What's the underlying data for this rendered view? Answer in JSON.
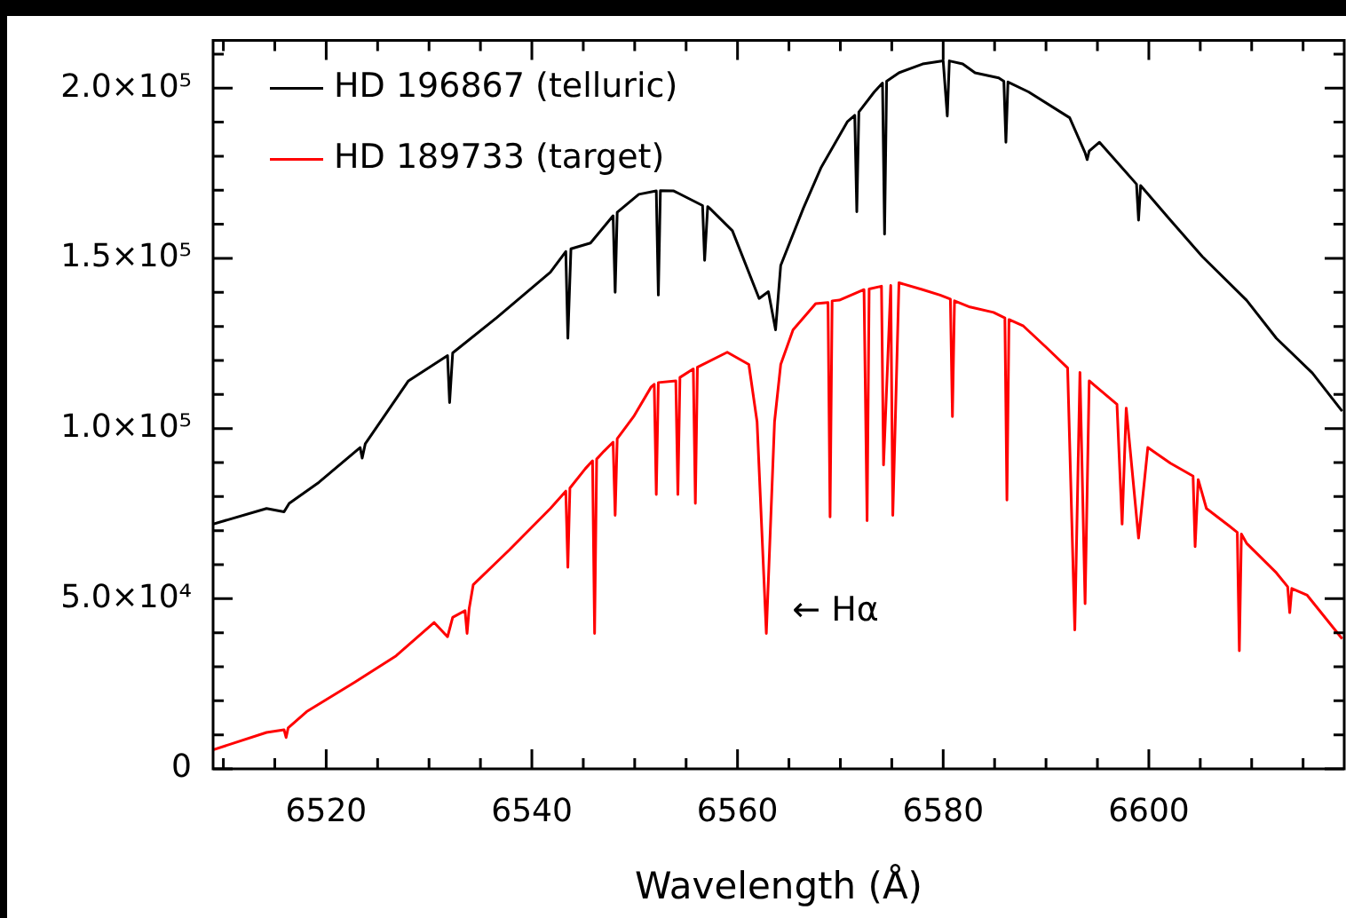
{
  "chart_data": {
    "type": "line",
    "xlabel": "Wavelength (Å)",
    "xlim": [
      6509,
      6619
    ],
    "xticks": [
      {
        "value": 6510,
        "label": null
      },
      {
        "value": 6515,
        "label": null
      },
      6520,
      {
        "value": 6525,
        "label": null
      },
      {
        "value": 6530,
        "label": null
      },
      {
        "value": 6535,
        "label": null
      },
      6540,
      {
        "value": 6545,
        "label": null
      },
      {
        "value": 6550,
        "label": null
      },
      {
        "value": 6555,
        "label": null
      },
      6560,
      {
        "value": 6565,
        "label": null
      },
      {
        "value": 6570,
        "label": null
      },
      {
        "value": 6575,
        "label": null
      },
      6580,
      {
        "value": 6585,
        "label": null
      },
      {
        "value": 6590,
        "label": null
      },
      {
        "value": 6595,
        "label": null
      },
      6600,
      {
        "value": 6605,
        "label": null
      },
      {
        "value": 6610,
        "label": null
      },
      {
        "value": 6615,
        "label": null
      }
    ],
    "ylim": [
      0,
      214000
    ],
    "yticks": [
      {
        "value": 0,
        "label": "0"
      },
      {
        "value": 10000,
        "label": null
      },
      {
        "value": 20000,
        "label": null
      },
      {
        "value": 30000,
        "label": null
      },
      {
        "value": 40000,
        "label": null
      },
      {
        "value": 50000,
        "label": "5.0×10⁴"
      },
      {
        "value": 60000,
        "label": null
      },
      {
        "value": 70000,
        "label": null
      },
      {
        "value": 80000,
        "label": null
      },
      {
        "value": 90000,
        "label": null
      },
      {
        "value": 100000,
        "label": "1.0×10⁵"
      },
      {
        "value": 110000,
        "label": null
      },
      {
        "value": 120000,
        "label": null
      },
      {
        "value": 130000,
        "label": null
      },
      {
        "value": 140000,
        "label": null
      },
      {
        "value": 150000,
        "label": "1.5×10⁵"
      },
      {
        "value": 160000,
        "label": null
      },
      {
        "value": 170000,
        "label": null
      },
      {
        "value": 180000,
        "label": null
      },
      {
        "value": 190000,
        "label": null
      },
      {
        "value": 200000,
        "label": "2.0×10⁵"
      },
      {
        "value": 210000,
        "label": null
      }
    ],
    "legend": "top left",
    "grid": false,
    "marker": "none",
    "line_style": "solid",
    "annotations": [
      "← Hα"
    ],
    "series": [
      {
        "name": "HD 196867 (telluric)",
        "color": "#000000",
        "x": [
          6509,
          6514.2,
          6515.9,
          6516.4,
          6519.3,
          6523.3,
          6523.5,
          6523.8,
          6528,
          6531.8,
          6532,
          6532.3,
          6536.6,
          6541.8,
          6543.3,
          6543.5,
          6543.8,
          6545.7,
          6547.9,
          6548.1,
          6548.3,
          6550.4,
          6552.1,
          6552.3,
          6552.5,
          6553.8,
          6556.6,
          6556.8,
          6557.1,
          6557.3,
          6559.5,
          6562.1,
          6563,
          6563.7,
          6564.2,
          6566.4,
          6568.1,
          6570.7,
          6571.4,
          6571.6,
          6571.8,
          6573.3,
          6574.1,
          6574.3,
          6574.5,
          6575.7,
          6578,
          6580,
          6580.4,
          6580.6,
          6581.9,
          6583.1,
          6585.4,
          6585.9,
          6586.1,
          6586.3,
          6588.3,
          6592.3,
          6593.8,
          6594,
          6594.2,
          6595.2,
          6598.8,
          6599,
          6599.2,
          6602.1,
          6605.2,
          6609.5,
          6612.4,
          6615.9,
          6618.8
        ],
        "values": [
          71900,
          76500,
          75500,
          78000,
          84200,
          94400,
          91300,
          95500,
          114000,
          121400,
          107600,
          122200,
          132600,
          145900,
          152000,
          126500,
          152800,
          154500,
          162500,
          140000,
          163500,
          168800,
          169800,
          139200,
          169900,
          169800,
          165500,
          149400,
          165200,
          164700,
          158100,
          138200,
          140200,
          129000,
          147900,
          164700,
          176500,
          190200,
          192000,
          163700,
          193000,
          198900,
          201500,
          157100,
          202000,
          204500,
          207100,
          208000,
          191800,
          208000,
          207100,
          204500,
          203000,
          202000,
          184100,
          201800,
          198900,
          191300,
          181000,
          179000,
          181500,
          184100,
          171800,
          161200,
          171400,
          161200,
          150500,
          137700,
          126500,
          116300,
          105100
        ]
      },
      {
        "name": "HD 189733 (target)",
        "color": "#ff0000",
        "x": [
          6509,
          6514.2,
          6515.9,
          6516.1,
          6516.3,
          6518.1,
          6522.8,
          6526.8,
          6530.5,
          6531.8,
          6532.3,
          6533.5,
          6533.7,
          6533.9,
          6534.3,
          6537.8,
          6541.8,
          6543.3,
          6543.5,
          6543.7,
          6545.2,
          6545.9,
          6546.1,
          6546.3,
          6547,
          6547.9,
          6548.1,
          6548.3,
          6549.9,
          6551.6,
          6551.9,
          6552.1,
          6552.3,
          6554,
          6554.2,
          6554.4,
          6555.7,
          6555.9,
          6556.1,
          6559,
          6561.1,
          6561.9,
          6562.8,
          6563.6,
          6564.2,
          6565.4,
          6567.6,
          6568.8,
          6569,
          6569.2,
          6569.9,
          6572.3,
          6572.6,
          6572.8,
          6574,
          6574.2,
          6574.9,
          6575.1,
          6575.7,
          6578,
          6579.7,
          6580.7,
          6580.9,
          6581.1,
          6582.6,
          6584.9,
          6586,
          6586.2,
          6586.4,
          6587.8,
          6590,
          6592.1,
          6592.8,
          6593.3,
          6593.8,
          6594.2,
          6594.7,
          6596.9,
          6597.4,
          6597.8,
          6599,
          6599.9,
          6602.1,
          6604.3,
          6604.5,
          6604.8,
          6605.6,
          6607.8,
          6608.6,
          6608.8,
          6609,
          6609.5,
          6612.4,
          6613.5,
          6613.7,
          6613.9,
          6615.4,
          6618.8
        ],
        "values": [
          5600,
          10700,
          11500,
          9200,
          12000,
          16800,
          25500,
          33200,
          43000,
          38800,
          44500,
          46500,
          39800,
          47000,
          54100,
          64300,
          76500,
          81600,
          59200,
          82500,
          88200,
          90500,
          39800,
          91000,
          93300,
          96000,
          74500,
          97000,
          103500,
          112200,
          113000,
          80600,
          113500,
          114000,
          80600,
          115000,
          117500,
          78000,
          118000,
          122400,
          118800,
          102000,
          39800,
          102000,
          118800,
          129000,
          136700,
          137000,
          74000,
          137500,
          137700,
          140800,
          72900,
          141000,
          141800,
          89300,
          142000,
          74500,
          142800,
          140800,
          139200,
          138000,
          103500,
          137500,
          135700,
          134100,
          132500,
          79000,
          132000,
          130100,
          123900,
          117800,
          40800,
          116500,
          48500,
          114000,
          112700,
          107100,
          71900,
          106000,
          67800,
          94400,
          89800,
          86000,
          65300,
          85000,
          76500,
          71400,
          69500,
          34700,
          69000,
          66300,
          57600,
          53500,
          45900,
          53000,
          51000,
          38200
        ]
      }
    ]
  }
}
